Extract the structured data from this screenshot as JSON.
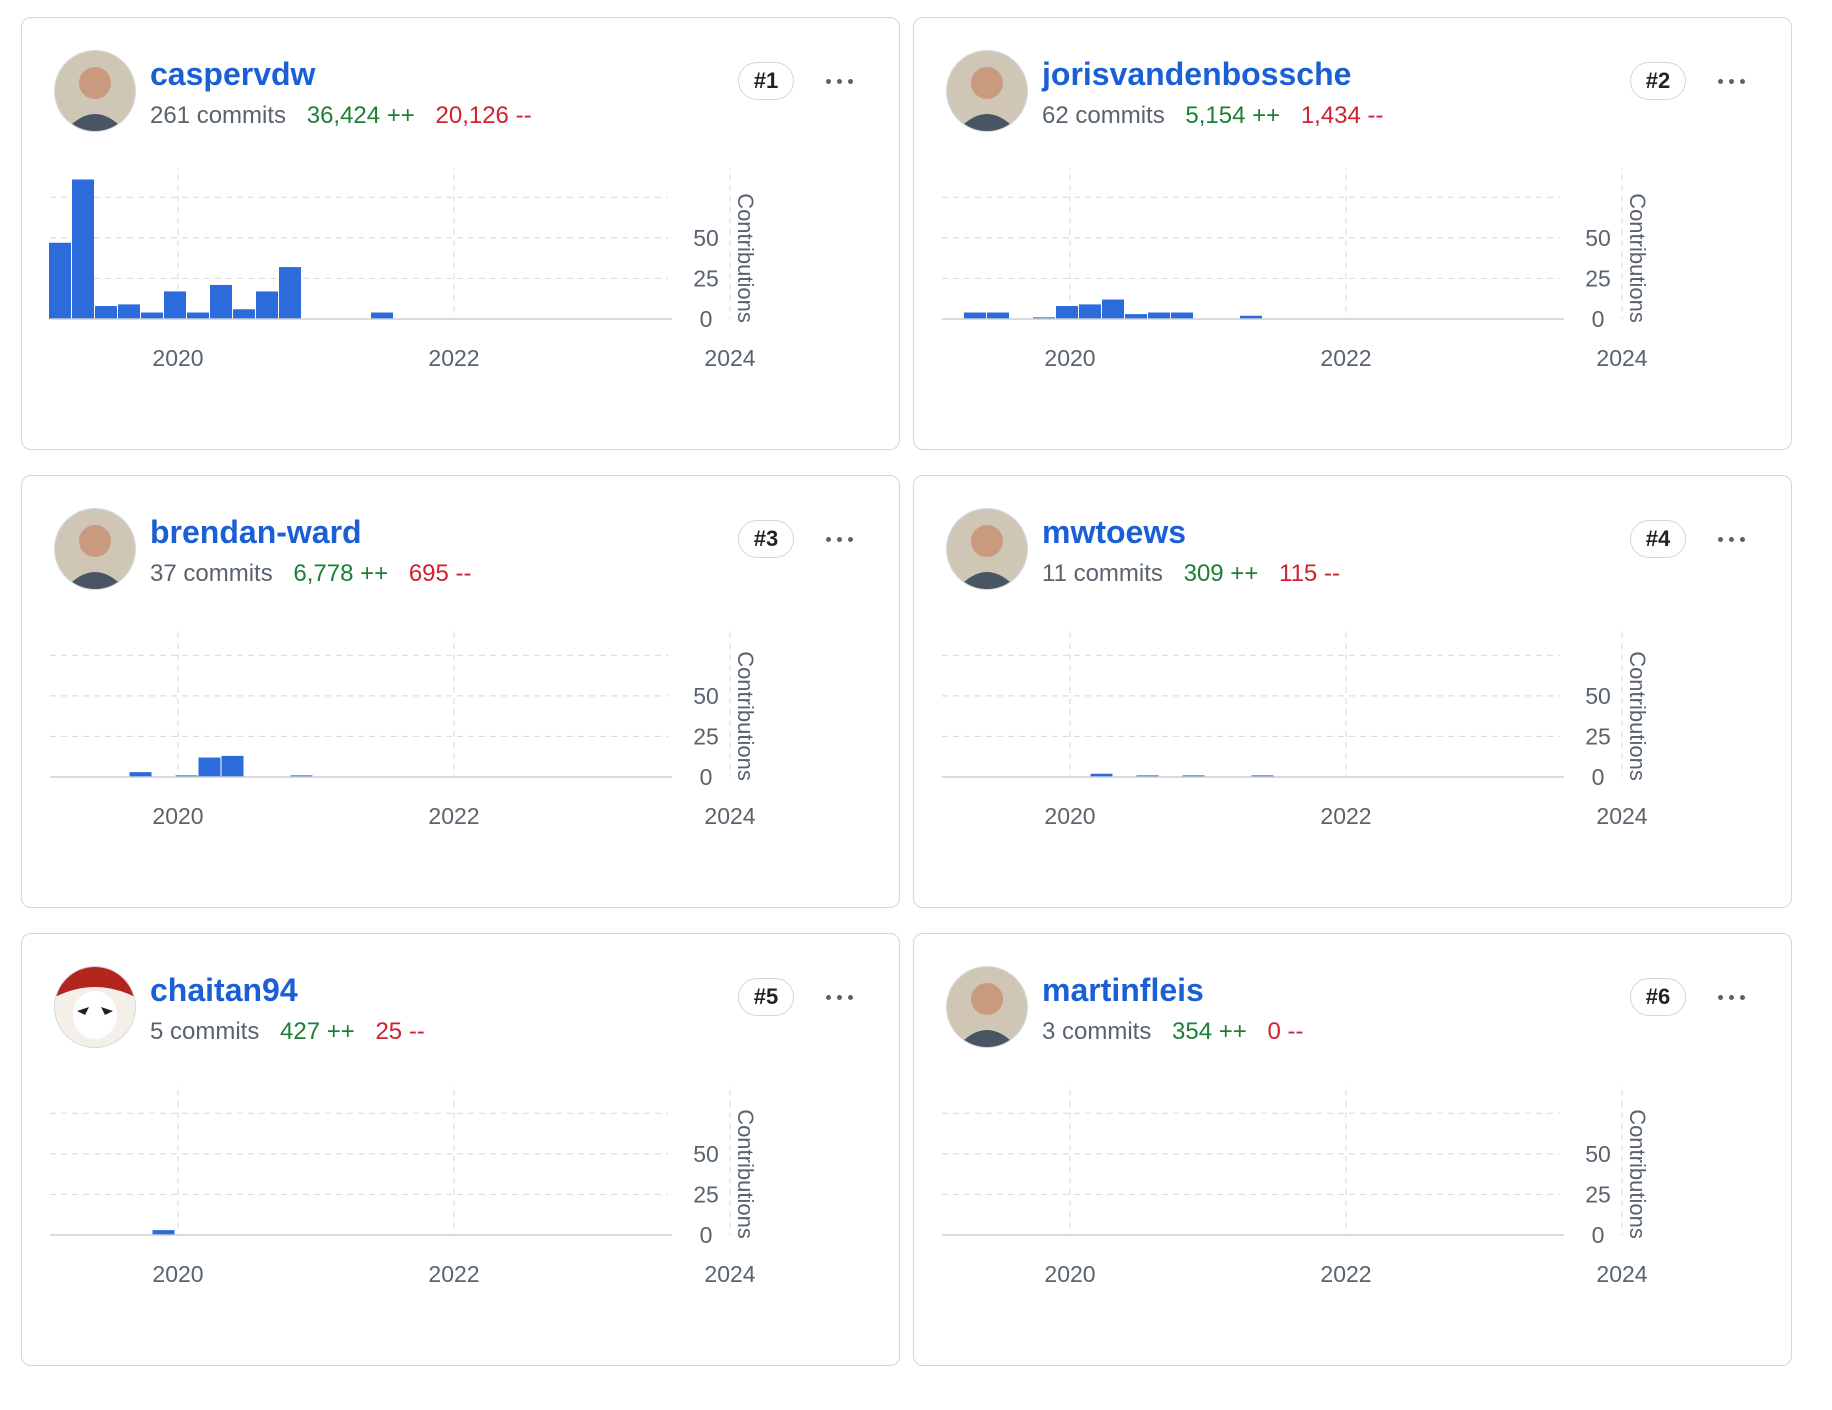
{
  "colors": {
    "bar": "#2c6bdb",
    "link": "#1a5fd6",
    "additions": "#1a7f37",
    "deletions": "#cf222e",
    "grid": "#d8dee4"
  },
  "chart_axes": {
    "x_ticks": [
      "2020",
      "2022",
      "2024"
    ],
    "y_ticks": [
      "0",
      "25",
      "50"
    ],
    "y_label": "Contributions",
    "ylim": [
      0,
      90
    ]
  },
  "contributors": [
    {
      "rank": "#1",
      "login": "caspervdw",
      "commits": "261 commits",
      "additions": "36,424 ++",
      "deletions": "20,126 --",
      "avatar_icon": "person-avatar-icon",
      "chart_data": {
        "type": "bar",
        "x_unit": "months since 2019-01",
        "x": [
          0,
          2,
          4,
          6,
          8,
          10,
          12,
          14,
          16,
          18,
          20,
          22,
          28
        ],
        "values": [
          47,
          86,
          8,
          9,
          4,
          17,
          4,
          21,
          6,
          17,
          32,
          0,
          4
        ]
      }
    },
    {
      "rank": "#2",
      "login": "jorisvandenbossche",
      "commits": "62 commits",
      "additions": "5,154 ++",
      "deletions": "1,434 --",
      "avatar_icon": "person-avatar-icon",
      "chart_data": {
        "type": "bar",
        "x": [
          2,
          4,
          8,
          10,
          12,
          14,
          16,
          18,
          20,
          26
        ],
        "values": [
          4,
          4,
          1,
          8,
          9,
          12,
          3,
          4,
          4,
          2
        ]
      }
    },
    {
      "rank": "#3",
      "login": "brendan-ward",
      "commits": "37 commits",
      "additions": "6,778 ++",
      "deletions": "695 --",
      "avatar_icon": "person-avatar-icon",
      "chart_data": {
        "type": "bar",
        "x": [
          7,
          11,
          13,
          15,
          21
        ],
        "values": [
          3,
          1,
          12,
          13,
          1
        ]
      }
    },
    {
      "rank": "#4",
      "login": "mwtoews",
      "commits": "11 commits",
      "additions": "309 ++",
      "deletions": "115 --",
      "avatar_icon": "person-avatar-icon",
      "chart_data": {
        "type": "bar",
        "x": [
          13,
          17,
          21,
          27
        ],
        "values": [
          2,
          1,
          1,
          1
        ]
      }
    },
    {
      "rank": "#5",
      "login": "chaitan94",
      "commits": "5 commits",
      "additions": "427 ++",
      "deletions": "25 --",
      "avatar_icon": "masked-character-avatar-icon",
      "chart_data": {
        "type": "bar",
        "x": [
          9
        ],
        "values": [
          3
        ]
      }
    },
    {
      "rank": "#6",
      "login": "martinfleis",
      "commits": "3 commits",
      "additions": "354 ++",
      "deletions": "0 --",
      "avatar_icon": "person-avatar-icon",
      "chart_data": {
        "type": "bar",
        "x": [],
        "values": []
      }
    }
  ]
}
